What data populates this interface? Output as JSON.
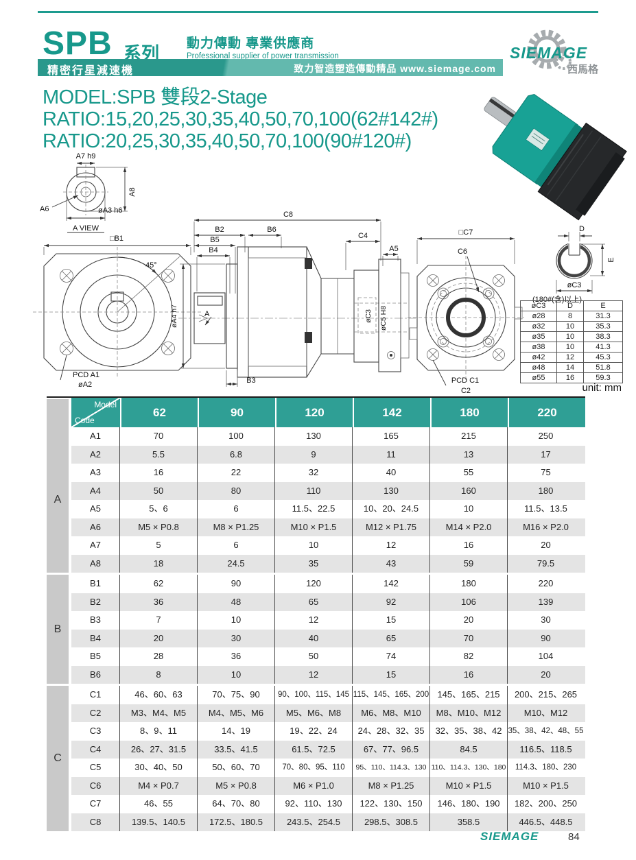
{
  "colors": {
    "accent": "#17988b",
    "banner_left": "#2a988c",
    "banner_right": "#63b9ae",
    "table_header": "#2f9f95",
    "row_alt": "#e4e4e4",
    "group_col": "#c9c9c9"
  },
  "header": {
    "series": "SPB",
    "series_suffix": "系列",
    "tagline_zh": "動力傳動 專業供應商",
    "tagline_en": "Professional supplier of power transmission",
    "banner_left": "精密行星減速機",
    "banner_right": "致力智造塑造傳動精品  www.siemage.com",
    "logo_text": "SIEMAGE",
    "logo_sub": "西馬格"
  },
  "model_block": {
    "model_line": "MODEL:SPB 雙段2-Stage",
    "ratio_line1": "RATIO:15,20,25,30,35,40,50,70,100(62#142#)",
    "ratio_line2": "RATIO:20,25,30,35,40,50,70,100(90#120#)"
  },
  "drawings": {
    "a_view": {
      "dim_a7": "A7 h9",
      "dim_a8": "A8",
      "dim_a6": "A6",
      "dim_a3": "øA3 h6",
      "caption": "A VIEW"
    },
    "front_view": {
      "dim_b1": "□B1",
      "angle": "45°",
      "section": "A",
      "pcd": "PCD A1",
      "dim_a2": "øA2"
    },
    "side_view": {
      "c8": "C8",
      "b2": "B2",
      "b6": "B6",
      "b5": "B5",
      "b4": "B4",
      "c4": "C4",
      "a5": "A5",
      "a4": "øA4 h7",
      "c3": "øC3",
      "c5": "øC5 H8",
      "b3": "B3"
    },
    "rear_view": {
      "c7": "□C7",
      "c6": "C6",
      "pcd": "PCD C1",
      "c2": "C2"
    },
    "shaft_detail": {
      "d": "D",
      "e": "E",
      "c3": "øC3",
      "caption": "(180#(含)以上)"
    }
  },
  "small_table": {
    "headers": [
      "øC3",
      "D",
      "E"
    ],
    "rows": [
      [
        "ø28",
        "8",
        "31.3"
      ],
      [
        "ø32",
        "10",
        "35.3"
      ],
      [
        "ø35",
        "10",
        "38.3"
      ],
      [
        "ø38",
        "10",
        "41.3"
      ],
      [
        "ø42",
        "12",
        "45.3"
      ],
      [
        "ø48",
        "14",
        "51.8"
      ],
      [
        "ø55",
        "16",
        "59.3"
      ]
    ]
  },
  "unit_label": "unit: mm",
  "main_table": {
    "corner": {
      "top": "Model",
      "bottom": "Code"
    },
    "columns": [
      "62",
      "90",
      "120",
      "142",
      "180",
      "220"
    ],
    "groups": [
      {
        "label": "A",
        "rows": [
          {
            "code": "A1",
            "values": [
              "70",
              "100",
              "130",
              "165",
              "215",
              "250"
            ]
          },
          {
            "code": "A2",
            "values": [
              "5.5",
              "6.8",
              "9",
              "11",
              "13",
              "17"
            ]
          },
          {
            "code": "A3",
            "values": [
              "16",
              "22",
              "32",
              "40",
              "55",
              "75"
            ]
          },
          {
            "code": "A4",
            "values": [
              "50",
              "80",
              "110",
              "130",
              "160",
              "180"
            ]
          },
          {
            "code": "A5",
            "values": [
              "5、6",
              "6",
              "11.5、22.5",
              "10、20、24.5",
              "10",
              "11.5、13.5"
            ]
          },
          {
            "code": "A6",
            "values": [
              "M5 × P0.8",
              "M8 × P1.25",
              "M10 × P1.5",
              "M12 × P1.75",
              "M14 × P2.0",
              "M16 × P2.0"
            ]
          },
          {
            "code": "A7",
            "values": [
              "5",
              "6",
              "10",
              "12",
              "16",
              "20"
            ]
          },
          {
            "code": "A8",
            "values": [
              "18",
              "24.5",
              "35",
              "43",
              "59",
              "79.5"
            ]
          }
        ]
      },
      {
        "label": "B",
        "rows": [
          {
            "code": "B1",
            "values": [
              "62",
              "90",
              "120",
              "142",
              "180",
              "220"
            ]
          },
          {
            "code": "B2",
            "values": [
              "36",
              "48",
              "65",
              "92",
              "106",
              "139"
            ]
          },
          {
            "code": "B3",
            "values": [
              "7",
              "10",
              "12",
              "15",
              "20",
              "30"
            ]
          },
          {
            "code": "B4",
            "values": [
              "20",
              "30",
              "40",
              "65",
              "70",
              "90"
            ]
          },
          {
            "code": "B5",
            "values": [
              "28",
              "36",
              "50",
              "74",
              "82",
              "104"
            ]
          },
          {
            "code": "B6",
            "values": [
              "8",
              "10",
              "12",
              "15",
              "16",
              "20"
            ]
          }
        ]
      },
      {
        "label": "C",
        "rows": [
          {
            "code": "C1",
            "values": [
              "46、60、63",
              "70、75、90",
              "90、100、115、145",
              "115、145、165、200",
              "145、165、215",
              "200、215、265"
            ]
          },
          {
            "code": "C2",
            "values": [
              "M3、M4、M5",
              "M4、M5、M6",
              "M5、M6、M8",
              "M6、M8、M10",
              "M8、M10、M12",
              "M10、M12"
            ]
          },
          {
            "code": "C3",
            "values": [
              "8、9、11",
              "14、19",
              "19、22、24",
              "24、28、32、35",
              "32、35、38、42",
              "35、38、42、48、55"
            ]
          },
          {
            "code": "C4",
            "values": [
              "26、27、31.5",
              "33.5、41.5",
              "61.5、72.5",
              "67、77、96.5",
              "84.5",
              "116.5、118.5"
            ]
          },
          {
            "code": "C5",
            "values": [
              "30、40、50",
              "50、60、70",
              "70、80、95、110",
              "95、110、114.3、130",
              "110、114.3、130、180",
              "114.3、180、230"
            ]
          },
          {
            "code": "C6",
            "values": [
              "M4 × P0.7",
              "M5 × P0.8",
              "M6 × P1.0",
              "M8 × P1.25",
              "M10 × P1.5",
              "M10 × P1.5"
            ]
          },
          {
            "code": "C7",
            "values": [
              "46、55",
              "64、70、80",
              "92、110、130",
              "122、130、150",
              "146、180、190",
              "182、200、250"
            ]
          },
          {
            "code": "C8",
            "values": [
              "139.5、140.5",
              "172.5、180.5",
              "243.5、254.5",
              "298.5、308.5",
              "358.5",
              "446.5、448.5"
            ]
          }
        ]
      }
    ]
  },
  "footer": {
    "brand": "SIEMAGE",
    "page": "84"
  }
}
